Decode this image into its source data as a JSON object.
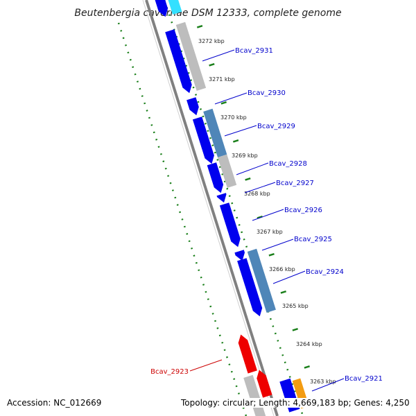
{
  "title": "Beutenbergia cavernae DSM 12333, complete genome",
  "footer": {
    "accession": "Accession: NC_012669",
    "topology": "Topology: circular; Length: 4,669,183 bp; Genes: 4,250"
  },
  "colors": {
    "forward_cds": "#0000ee",
    "reverse_cds_gray": "#bdbdbd",
    "reverse_cds_steel": "#4f86b8",
    "rna_gene": "#ee0000",
    "other_gene": "#f39c12",
    "highlight_gene": "#33e0ff",
    "backbone": "#808080",
    "ruler": "#1a7f1a",
    "gene_label": "#0000cc",
    "rna_label": "#cc0000"
  },
  "ruler_labels": [
    "3272 kbp",
    "3271 kbp",
    "3270 kbp",
    "3269 kbp",
    "3268 kbp",
    "3267 kbp",
    "3266 kbp",
    "3265 kbp",
    "3264 kbp",
    "3263 kbp"
  ],
  "gene_labels": [
    {
      "text": "Bcav_2931",
      "type": "cds"
    },
    {
      "text": "Bcav_2930",
      "type": "cds"
    },
    {
      "text": "Bcav_2929",
      "type": "cds"
    },
    {
      "text": "Bcav_2928",
      "type": "cds"
    },
    {
      "text": "Bcav_2927",
      "type": "cds"
    },
    {
      "text": "Bcav_2926",
      "type": "cds"
    },
    {
      "text": "Bcav_2925",
      "type": "cds"
    },
    {
      "text": "Bcav_2924",
      "type": "cds"
    },
    {
      "text": "Bcav_2923",
      "type": "rna"
    },
    {
      "text": "Bcav_2921",
      "type": "cds"
    }
  ]
}
